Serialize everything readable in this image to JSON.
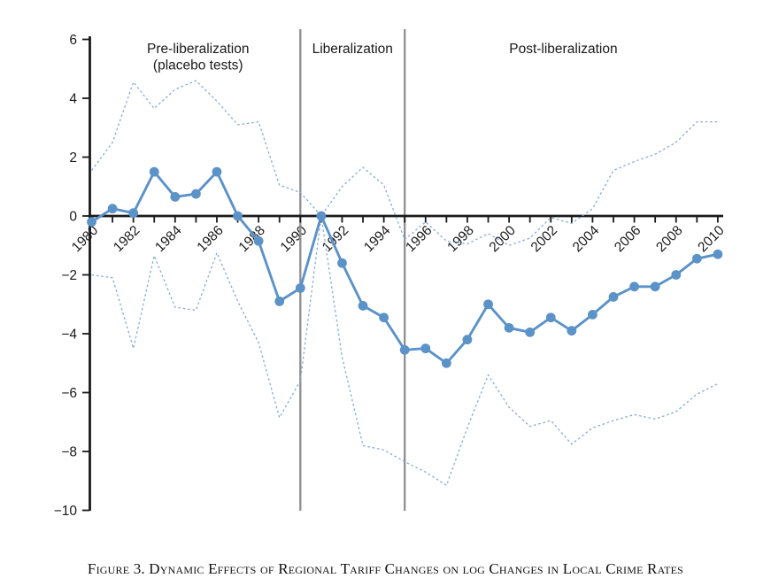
{
  "figure": {
    "caption": "Figure 3. Dynamic Effects of Regional Tariff Changes on log Changes in Local Crime Rates"
  },
  "chart_data": {
    "type": "line",
    "title": "",
    "xlabel": "",
    "ylabel": "",
    "grid": false,
    "legend": "none",
    "ylim": [
      -10,
      6
    ],
    "xlim": [
      1980,
      2010
    ],
    "baseline_year": 1991,
    "x": [
      1980,
      1981,
      1982,
      1983,
      1984,
      1985,
      1986,
      1987,
      1988,
      1989,
      1990,
      1991,
      1992,
      1993,
      1994,
      1995,
      1996,
      1997,
      1998,
      1999,
      2000,
      2001,
      2002,
      2003,
      2004,
      2005,
      2006,
      2007,
      2008,
      2009,
      2010
    ],
    "series": [
      {
        "name": "point estimate",
        "style": "solid",
        "marker": "circle",
        "values": [
          -0.2,
          0.25,
          0.1,
          1.5,
          0.65,
          0.75,
          1.5,
          0.0,
          -0.85,
          -2.9,
          -2.45,
          0.0,
          -1.6,
          -3.05,
          -3.45,
          -4.55,
          -4.5,
          -5.0,
          -4.2,
          -3.0,
          -3.8,
          -3.95,
          -3.45,
          -3.9,
          -3.35,
          -2.75,
          -2.4,
          -2.4,
          -2.0,
          -1.45,
          -1.3
        ]
      },
      {
        "name": "upper dashed band",
        "style": "dashed",
        "marker": "none",
        "values": [
          1.55,
          2.5,
          4.55,
          3.65,
          4.3,
          4.6,
          3.9,
          3.1,
          3.2,
          1.05,
          0.8,
          0.0,
          1.0,
          1.65,
          1.05,
          -0.8,
          -0.2,
          -0.85,
          -0.95,
          -0.6,
          -1.0,
          -0.75,
          -0.05,
          -0.25,
          0.25,
          1.55,
          1.85,
          2.1,
          2.5,
          3.2,
          3.2
        ]
      },
      {
        "name": "lower dashed band",
        "style": "dashed",
        "marker": "none",
        "values": [
          -2.0,
          -2.1,
          -4.5,
          -1.35,
          -3.1,
          -3.2,
          -1.25,
          -2.9,
          -4.3,
          -6.85,
          -5.6,
          0.0,
          -4.8,
          -7.8,
          -7.95,
          -8.35,
          -8.7,
          -9.15,
          -7.2,
          -5.4,
          -6.5,
          -7.15,
          -6.95,
          -7.75,
          -7.2,
          -6.95,
          -6.75,
          -6.9,
          -6.65,
          -6.05,
          -5.7
        ]
      }
    ],
    "yticks": [
      6,
      4,
      2,
      0,
      -2,
      -4,
      -6,
      -8,
      -10
    ],
    "ytick_labels": [
      "6",
      "4",
      "2",
      "0",
      "−2",
      "−4",
      "−6",
      "−8",
      "−10"
    ],
    "xtick_label_years": [
      1980,
      1982,
      1984,
      1986,
      1988,
      1990,
      1992,
      1994,
      1996,
      1998,
      2000,
      2002,
      2004,
      2006,
      2008,
      2010
    ],
    "vlines": [
      {
        "name": "liberalization-start-vline",
        "year": 1990
      },
      {
        "name": "liberalization-end-vline",
        "year": 1995
      }
    ],
    "annotations": [
      {
        "name": "pre-liberalization-label",
        "lines": [
          "Pre-liberalization",
          "(placebo tests)"
        ],
        "x_year": 1985.1
      },
      {
        "name": "liberalization-label",
        "lines": [
          "Liberalization"
        ],
        "x_year": 1992.5
      },
      {
        "name": "post-liberalization-label",
        "lines": [
          "Post-liberalization"
        ],
        "x_year": 2002.6
      }
    ],
    "colors": {
      "line": "#5b92c8",
      "band": "#84abda",
      "vline": "#8e8e8e",
      "axis": "#1a1a1a",
      "text": "#1a1a1a"
    }
  }
}
